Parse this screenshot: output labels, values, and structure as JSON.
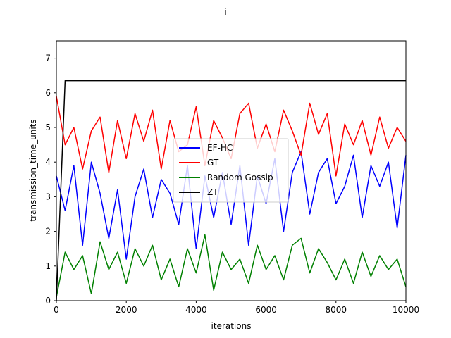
{
  "chart_data": {
    "type": "line",
    "title": "i",
    "xlabel": "iterations",
    "ylabel": "transmission_time_units",
    "xlim": [
      0,
      10000
    ],
    "ylim": [
      0,
      7.5
    ],
    "xticks": [
      0,
      2000,
      4000,
      6000,
      8000,
      10000
    ],
    "xtick_labels": [
      "0",
      "2000",
      "4000",
      "6000",
      "8000",
      "10000"
    ],
    "yticks": [
      0,
      1,
      2,
      3,
      4,
      5,
      6,
      7
    ],
    "ytick_labels": [
      "0",
      "1",
      "2",
      "3",
      "4",
      "5",
      "6",
      "7"
    ],
    "grid": false,
    "legend": "center",
    "x": [
      0,
      250,
      500,
      750,
      1000,
      1250,
      1500,
      1750,
      2000,
      2250,
      2500,
      2750,
      3000,
      3250,
      3500,
      3750,
      4000,
      4250,
      4500,
      4750,
      5000,
      5250,
      5500,
      5750,
      6000,
      6250,
      6500,
      6750,
      7000,
      7250,
      7500,
      7750,
      8000,
      8250,
      8500,
      8750,
      9000,
      9250,
      9500,
      9750,
      10000
    ],
    "series": [
      {
        "name": "EF-HC",
        "color": "#0000ff",
        "values": [
          3.6,
          2.6,
          3.9,
          1.6,
          4.0,
          3.1,
          1.8,
          3.2,
          1.2,
          3.0,
          3.8,
          2.4,
          3.5,
          3.1,
          2.2,
          3.9,
          1.5,
          3.6,
          2.4,
          3.7,
          2.2,
          3.9,
          1.6,
          3.6,
          2.8,
          4.1,
          2.0,
          3.7,
          4.3,
          2.5,
          3.7,
          4.1,
          2.8,
          3.3,
          4.2,
          2.4,
          3.9,
          3.3,
          4.0,
          2.1,
          4.2
        ]
      },
      {
        "name": "GT",
        "color": "#ff0000",
        "values": [
          5.9,
          4.5,
          5.0,
          3.8,
          4.9,
          5.3,
          3.7,
          5.2,
          4.1,
          5.4,
          4.6,
          5.5,
          3.8,
          5.2,
          4.3,
          4.5,
          5.6,
          3.9,
          5.2,
          4.7,
          4.1,
          5.4,
          5.7,
          4.4,
          5.1,
          4.3,
          5.5,
          4.9,
          4.2,
          5.7,
          4.8,
          5.4,
          3.6,
          5.1,
          4.5,
          5.2,
          4.2,
          5.3,
          4.4,
          5.0,
          4.6
        ]
      },
      {
        "name": "Random Gossip",
        "color": "#008000",
        "values": [
          0.1,
          1.4,
          0.9,
          1.3,
          0.2,
          1.7,
          0.9,
          1.4,
          0.5,
          1.5,
          1.0,
          1.6,
          0.6,
          1.2,
          0.4,
          1.5,
          0.8,
          1.9,
          0.3,
          1.4,
          0.9,
          1.2,
          0.5,
          1.6,
          0.9,
          1.3,
          0.6,
          1.6,
          1.8,
          0.8,
          1.5,
          1.1,
          0.6,
          1.2,
          0.5,
          1.4,
          0.7,
          1.3,
          0.9,
          1.2,
          0.4
        ]
      },
      {
        "name": "ZT",
        "color": "#000000",
        "values": [
          0,
          6.35,
          6.35,
          6.35,
          6.35,
          6.35,
          6.35,
          6.35,
          6.35,
          6.35,
          6.35,
          6.35,
          6.35,
          6.35,
          6.35,
          6.35,
          6.35,
          6.35,
          6.35,
          6.35,
          6.35,
          6.35,
          6.35,
          6.35,
          6.35,
          6.35,
          6.35,
          6.35,
          6.35,
          6.35,
          6.35,
          6.35,
          6.35,
          6.35,
          6.35,
          6.35,
          6.35,
          6.35,
          6.35,
          6.35,
          6.35
        ]
      }
    ]
  }
}
